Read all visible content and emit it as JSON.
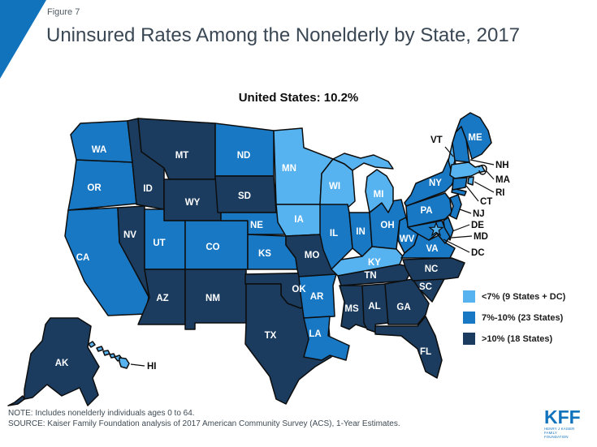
{
  "header": {
    "figure_label": "Figure 7",
    "title": "Uninsured Rates Among the Nonelderly by State, 2017",
    "subtitle": "United States: 10.2%"
  },
  "colors": {
    "light": "#57B3F0",
    "medium": "#1878C4",
    "dark": "#1B3C5F",
    "accent": "#1173BC",
    "outline": "#0d0d0d"
  },
  "legend": {
    "items": [
      {
        "category": "light",
        "label": "<7% (9 States + DC)"
      },
      {
        "category": "medium",
        "label": "7%-10% (23 States)"
      },
      {
        "category": "dark",
        "label": ">10% (18 States)"
      }
    ]
  },
  "footer": {
    "note": "NOTE: Includes nonelderly individuals ages 0 to 64.",
    "source": "SOURCE: Kaiser Family Foundation analysis of 2017 American Community Survey (ACS), 1-Year Estimates.",
    "logo_text": "KFF",
    "logo_sub1": "HENRY J KAISER",
    "logo_sub2": "FAMILY FOUNDATION"
  },
  "chart_data": {
    "type": "heatmap",
    "subtype": "us-choropleth",
    "title": "Uninsured Rates Among the Nonelderly by State, 2017",
    "annotation": "United States: 10.2%",
    "legend_position": "right",
    "categories": {
      "light": "<7% (9 States + DC)",
      "medium": "7%-10% (23 States)",
      "dark": ">10% (18 States)"
    },
    "states": {
      "WA": "medium",
      "OR": "medium",
      "CA": "medium",
      "NV": "dark",
      "ID": "dark",
      "MT": "dark",
      "WY": "dark",
      "UT": "medium",
      "CO": "medium",
      "AZ": "dark",
      "NM": "dark",
      "ND": "medium",
      "SD": "dark",
      "NE": "medium",
      "KS": "medium",
      "OK": "dark",
      "TX": "dark",
      "MN": "light",
      "IA": "light",
      "MO": "dark",
      "AR": "medium",
      "LA": "medium",
      "WI": "light",
      "IL": "medium",
      "IN": "medium",
      "MI": "light",
      "OH": "medium",
      "KY": "light",
      "TN": "dark",
      "MS": "dark",
      "AL": "dark",
      "GA": "dark",
      "FL": "dark",
      "SC": "dark",
      "NC": "dark",
      "VA": "medium",
      "WV": "medium",
      "PA": "medium",
      "NY": "medium",
      "NJ": "medium",
      "DE": "medium",
      "MD": "medium",
      "VT": "light",
      "NH": "medium",
      "ME": "medium",
      "MA": "light",
      "RI": "light",
      "CT": "medium",
      "AK": "dark",
      "HI": "light",
      "DC": "light"
    },
    "dc_marker": "star"
  }
}
